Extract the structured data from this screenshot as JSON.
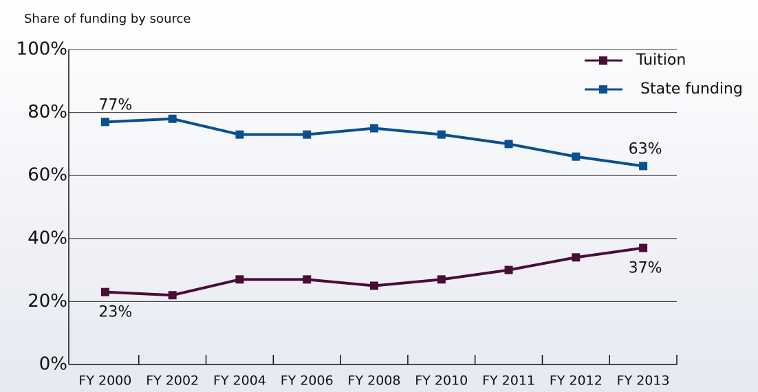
{
  "chart_data": {
    "type": "line",
    "title": "Share of funding by source",
    "categories": [
      "FY 2000",
      "FY 2002",
      "FY 2004",
      "FY 2006",
      "FY 2008",
      "FY 2010",
      "FY 2011",
      "FY 2012",
      "FY 2013"
    ],
    "series": [
      {
        "name": "Tuition",
        "color": "#4a0d36",
        "values": [
          23,
          22,
          27,
          27,
          25,
          27,
          30,
          34,
          37
        ],
        "value_labels": [
          "23%",
          null,
          null,
          null,
          null,
          null,
          null,
          null,
          "37%"
        ]
      },
      {
        "name": "State funding",
        "color": "#0b4f8e",
        "values": [
          77,
          78,
          73,
          73,
          75,
          73,
          70,
          66,
          63
        ],
        "value_labels": [
          "77%",
          null,
          null,
          null,
          null,
          null,
          null,
          null,
          "63%"
        ]
      }
    ],
    "ylim": [
      0,
      100
    ],
    "yticks": [
      {
        "value": 0,
        "label": "0%"
      },
      {
        "value": 20,
        "label": "20%"
      },
      {
        "value": 40,
        "label": "40%"
      },
      {
        "value": 60,
        "label": "60%"
      },
      {
        "value": 80,
        "label": "80%"
      },
      {
        "value": 100,
        "label": "100%"
      }
    ],
    "grid": true,
    "legend": "top-right"
  }
}
